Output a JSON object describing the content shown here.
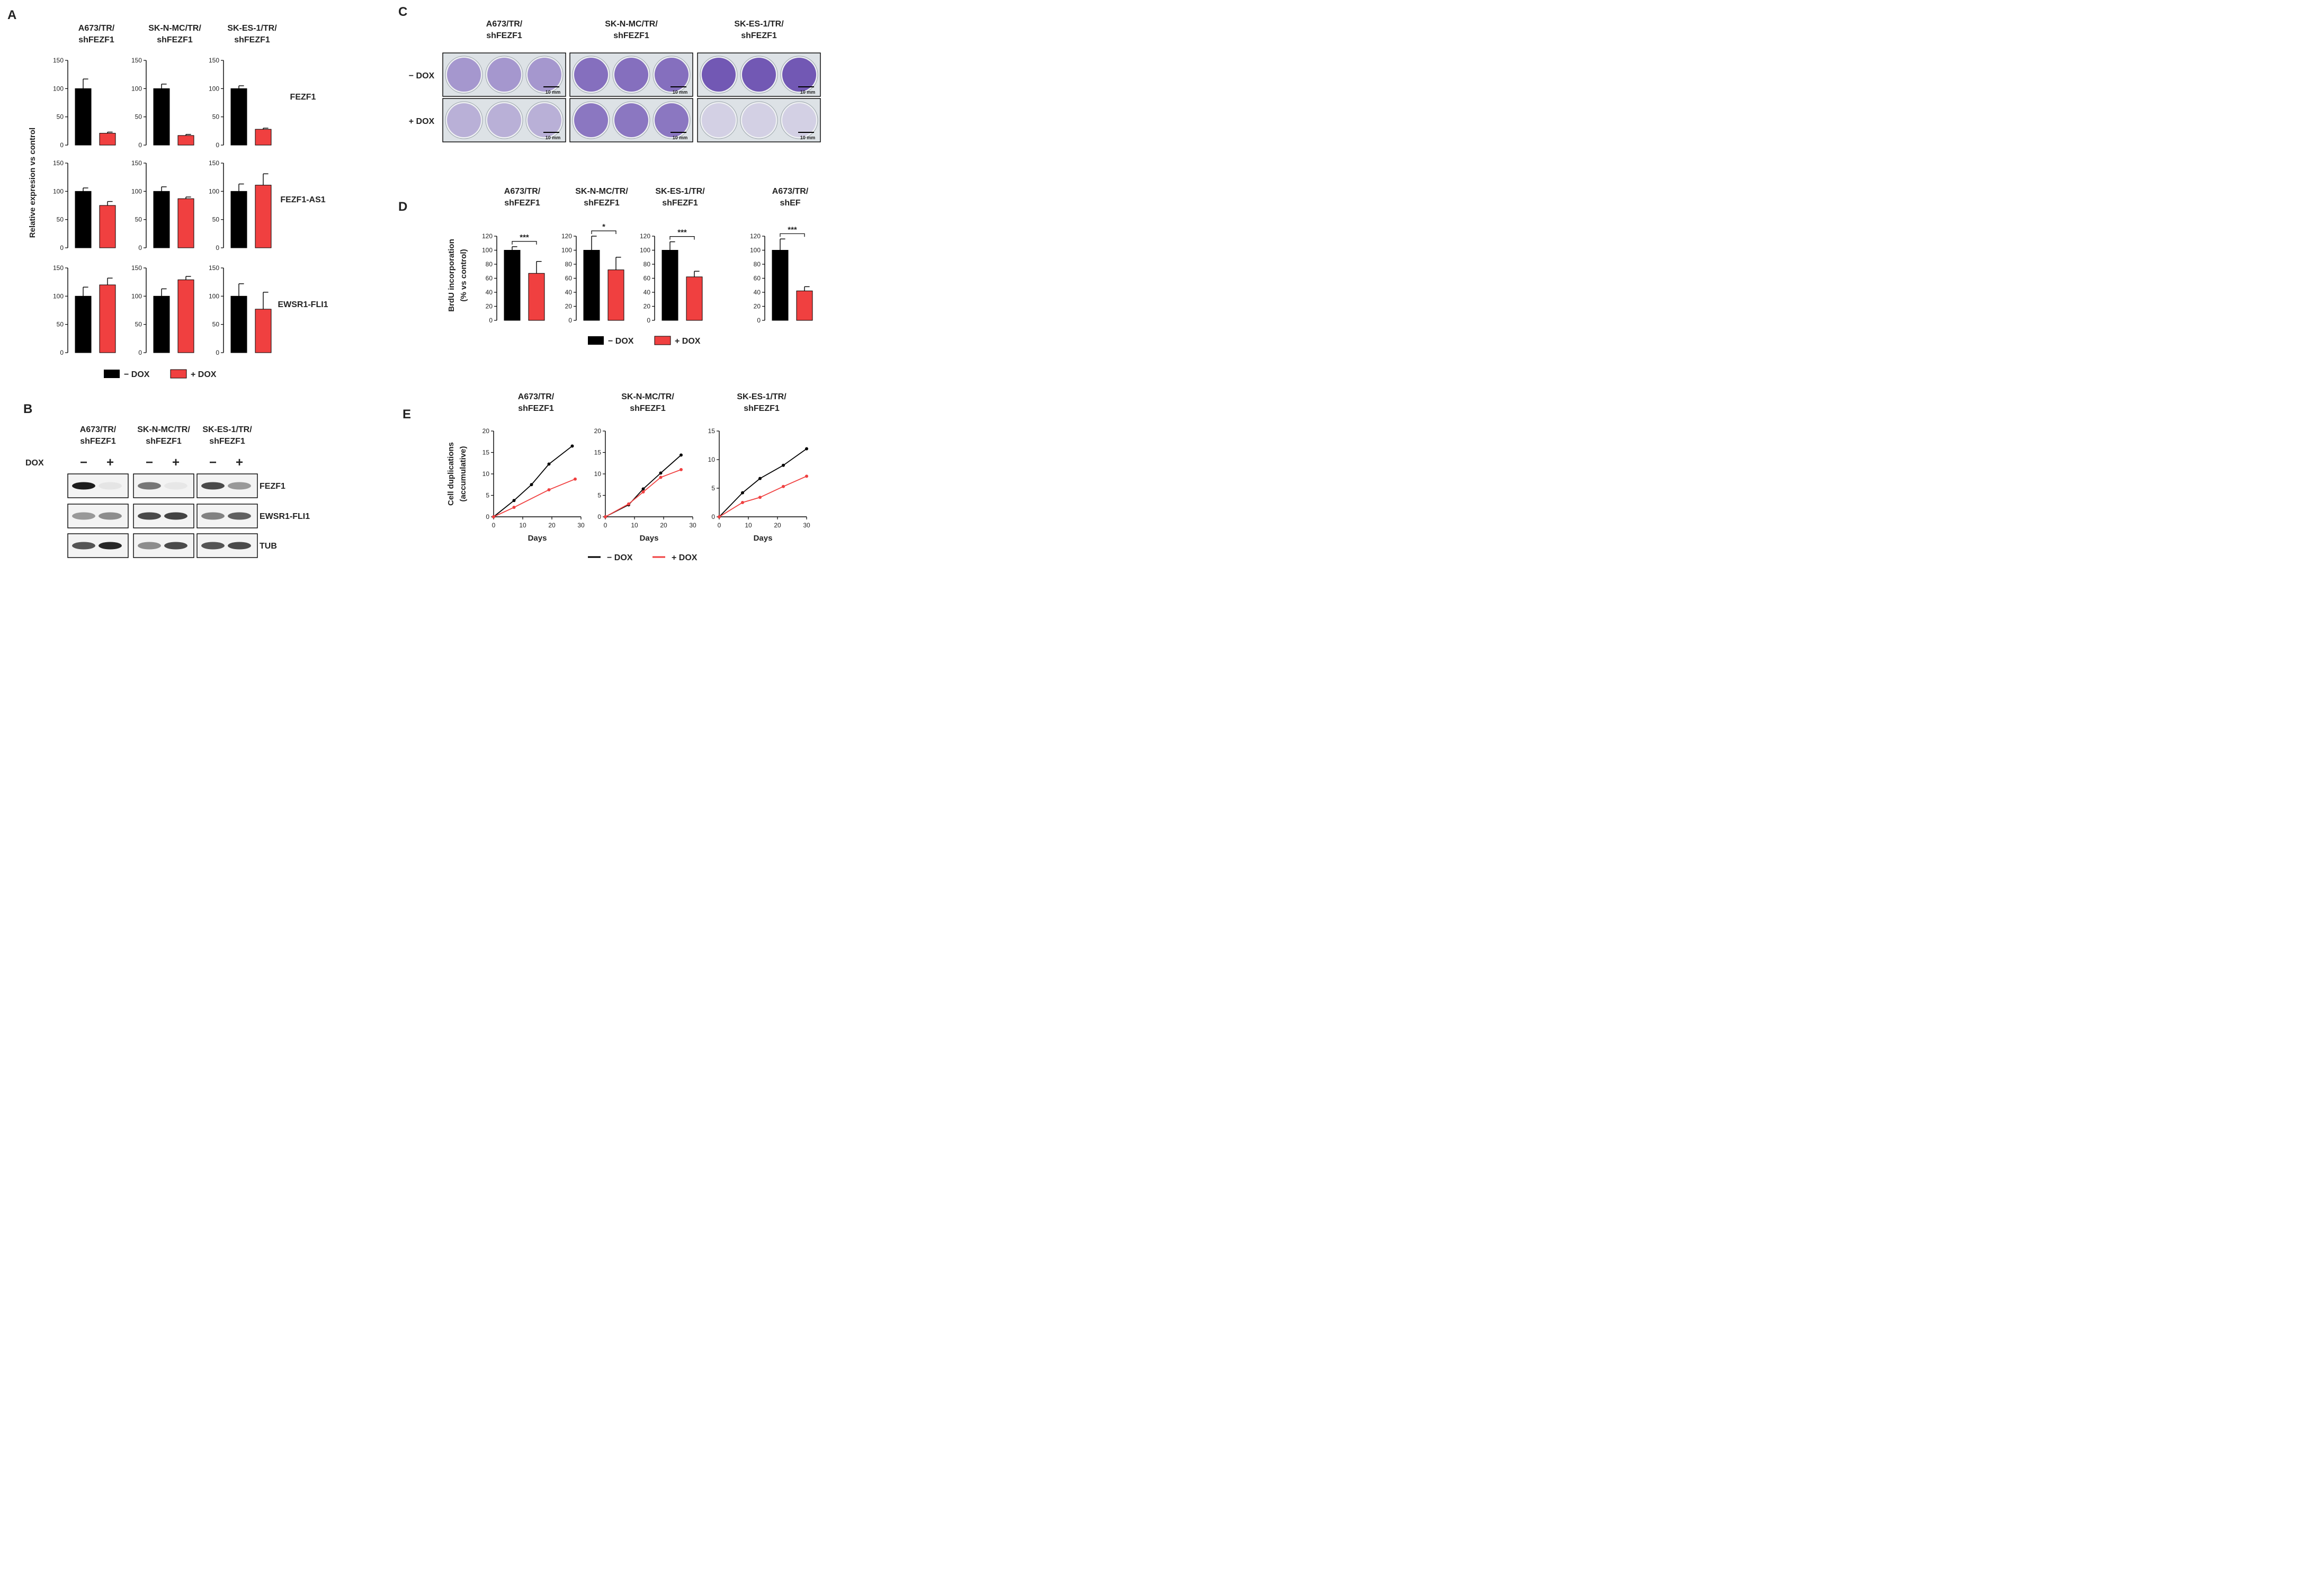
{
  "colors": {
    "minus_dox": "#000000",
    "plus_dox": "#f04040",
    "stain": "#6a4fb0",
    "plate_bg": "#dde2e6"
  },
  "legend": {
    "minus_label": "− DOX",
    "plus_label": "+ DOX"
  },
  "panels": {
    "A": {
      "label": "A",
      "ylabel": "Relative expresion vs control"
    },
    "B": {
      "label": "B",
      "dox_label": "DOX",
      "minus_sign": "−",
      "plus_sign": "+"
    },
    "C": {
      "label": "C",
      "rows": [
        "− DOX",
        "+ DOX"
      ],
      "scale_bar": "10 mm"
    },
    "D": {
      "label": "D",
      "ylabel_line1": "BrdU incorporation",
      "ylabel_line2": "(% vs control)"
    },
    "E": {
      "label": "E",
      "ylabel_line1": "Cell duplications",
      "ylabel_line2": "(accumulative)",
      "xlabel": "Days"
    }
  },
  "panelB": {
    "titles": [
      [
        "A673/TR/",
        "shFEZF1"
      ],
      [
        "SK-N-MC/TR/",
        "shFEZF1"
      ],
      [
        "SK-ES-1/TR/",
        "shFEZF1"
      ]
    ],
    "proteins": [
      "FEZF1",
      "EWSR1-FLI1",
      "TUB"
    ]
  },
  "panelC": {
    "titles": [
      [
        "A673/TR/",
        "shFEZF1"
      ],
      [
        "SK-N-MC/TR/",
        "shFEZF1"
      ],
      [
        "SK-ES-1/TR/",
        "shFEZF1"
      ]
    ],
    "stain_level": [
      [
        0.55,
        0.4
      ],
      [
        0.8,
        0.75
      ],
      [
        0.95,
        0.2
      ]
    ]
  },
  "chart_data": [
    {
      "panel": "A",
      "type": "bar",
      "ylabel": "Relative expresion vs control",
      "ylim": [
        0,
        150
      ],
      "yticks": [
        0,
        50,
        100,
        150
      ],
      "cell_lines": [
        [
          "A673/TR/",
          "shFEZF1"
        ],
        [
          "SK-N-MC/TR/",
          "shFEZF1"
        ],
        [
          "SK-ES-1/TR/",
          "shFEZF1"
        ]
      ],
      "genes": [
        "FEZF1",
        "FEZF1-AS1",
        "EWSR1-FLI1"
      ],
      "series": [
        {
          "name": "− DOX"
        },
        {
          "name": "+ DOX"
        }
      ],
      "values": [
        [
          [
            100,
            21
          ],
          [
            100,
            17
          ],
          [
            100,
            28
          ]
        ],
        [
          [
            100,
            75
          ],
          [
            100,
            87
          ],
          [
            100,
            111
          ]
        ],
        [
          [
            100,
            120
          ],
          [
            100,
            129
          ],
          [
            100,
            77
          ]
        ]
      ],
      "errors": [
        [
          [
            17,
            2
          ],
          [
            8,
            2
          ],
          [
            5,
            2
          ]
        ],
        [
          [
            6,
            7
          ],
          [
            8,
            3
          ],
          [
            13,
            20
          ]
        ],
        [
          [
            16,
            12
          ],
          [
            13,
            6
          ],
          [
            22,
            30
          ]
        ]
      ]
    },
    {
      "panel": "D",
      "type": "bar",
      "ylabel": "BrdU incorporation (% vs control)",
      "ylim": [
        0,
        120
      ],
      "yticks": [
        0,
        20,
        40,
        60,
        80,
        100,
        120
      ],
      "cell_lines": [
        [
          "A673/TR/",
          "shFEZF1"
        ],
        [
          "SK-N-MC/TR/",
          "shFEZF1"
        ],
        [
          "SK-ES-1/TR/",
          "shFEZF1"
        ],
        [
          "A673/TR/",
          "shEF"
        ]
      ],
      "series": [
        {
          "name": "− DOX"
        },
        {
          "name": "+ DOX"
        }
      ],
      "values": [
        [
          100,
          67
        ],
        [
          100,
          72
        ],
        [
          100,
          62
        ],
        [
          100,
          42
        ]
      ],
      "errors": [
        [
          5,
          17
        ],
        [
          20,
          18
        ],
        [
          12,
          8
        ],
        [
          16,
          6
        ]
      ],
      "significance": [
        "***",
        "*",
        "***",
        "***"
      ]
    },
    {
      "panel": "E",
      "type": "line",
      "ylabel": "Cell duplications (accumulative)",
      "xlabel": "Days",
      "xlim": [
        0,
        30
      ],
      "xticks": [
        0,
        10,
        20,
        30
      ],
      "charts": [
        {
          "title": [
            "A673/TR/",
            "shFEZF1"
          ],
          "ylim": [
            0,
            20
          ],
          "yticks": [
            0,
            5,
            10,
            15,
            20
          ],
          "series": [
            {
              "name": "− DOX",
              "x": [
                0,
                7,
                13,
                19,
                27
              ],
              "y": [
                0,
                3.8,
                7.5,
                12.3,
                16.5
              ]
            },
            {
              "name": "+ DOX",
              "x": [
                0,
                7,
                19,
                28
              ],
              "y": [
                0,
                2.2,
                6.3,
                8.8
              ]
            }
          ]
        },
        {
          "title": [
            "SK-N-MC/TR/",
            "shFEZF1"
          ],
          "ylim": [
            0,
            20
          ],
          "yticks": [
            0,
            5,
            10,
            15,
            20
          ],
          "series": [
            {
              "name": "− DOX",
              "x": [
                0,
                8,
                13,
                19,
                26
              ],
              "y": [
                0,
                2.8,
                6.5,
                10.2,
                14.4
              ]
            },
            {
              "name": "+ DOX",
              "x": [
                0,
                8,
                13,
                19,
                26
              ],
              "y": [
                0,
                3.0,
                5.8,
                9.2,
                11.0
              ]
            }
          ]
        },
        {
          "title": [
            "SK-ES-1/TR/",
            "shFEZF1"
          ],
          "ylim": [
            0,
            15
          ],
          "yticks": [
            0,
            5,
            10,
            15
          ],
          "series": [
            {
              "name": "− DOX",
              "x": [
                0,
                8,
                14,
                22,
                30
              ],
              "y": [
                0,
                4.2,
                6.7,
                9.0,
                11.9
              ]
            },
            {
              "name": "+ DOX",
              "x": [
                0,
                8,
                14,
                22,
                30
              ],
              "y": [
                0,
                2.5,
                3.4,
                5.3,
                7.1
              ]
            }
          ]
        }
      ]
    }
  ]
}
